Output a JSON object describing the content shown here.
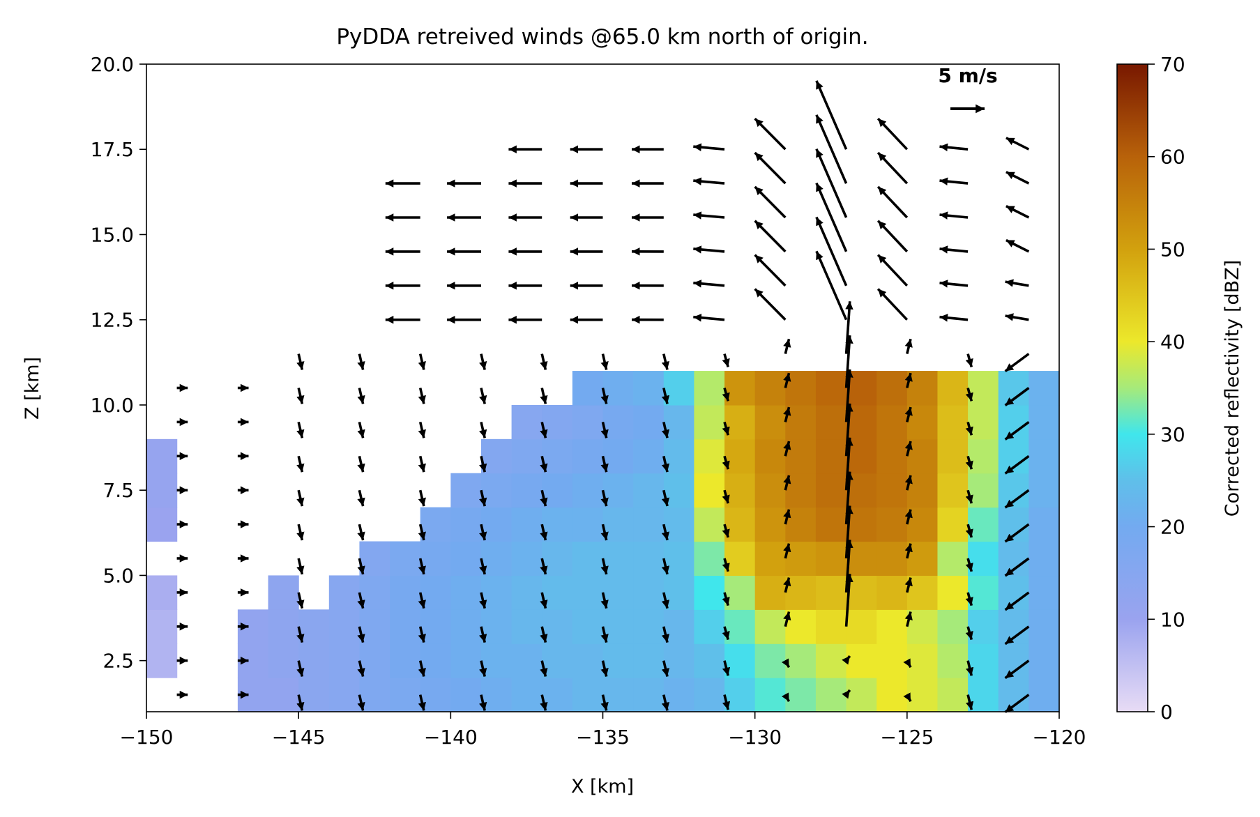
{
  "chart_data": {
    "type": "heatmap",
    "title": "PyDDA retreived winds @65.0 km north of origin.",
    "xlabel": "X [km]",
    "ylabel": "Z [km]",
    "xlim": [
      -150,
      -120
    ],
    "ylim": [
      1.0,
      20.0
    ],
    "x_ticks": [
      -150,
      -145,
      -140,
      -135,
      -130,
      -125,
      -120
    ],
    "x_tick_labels": [
      "−150",
      "−145",
      "−140",
      "−135",
      "−130",
      "−125",
      "−120"
    ],
    "y_ticks": [
      2.5,
      5.0,
      7.5,
      10.0,
      12.5,
      15.0,
      17.5,
      20.0
    ],
    "y_tick_labels": [
      "2.5",
      "5.0",
      "7.5",
      "10.0",
      "12.5",
      "15.0",
      "17.5",
      "20.0"
    ],
    "colorbar": {
      "label": "Corrected reflectivity [dBZ]",
      "range": [
        0,
        70
      ],
      "ticks": [
        0,
        10,
        20,
        30,
        40,
        50,
        60,
        70
      ],
      "tick_labels": [
        "0",
        "10",
        "20",
        "30",
        "40",
        "50",
        "60",
        "70"
      ],
      "stops": [
        {
          "value": 0,
          "color": "#e8dcf5"
        },
        {
          "value": 10,
          "color": "#9aa3ef"
        },
        {
          "value": 20,
          "color": "#73aaf0"
        },
        {
          "value": 25,
          "color": "#5fbfea"
        },
        {
          "value": 30,
          "color": "#40e6ec"
        },
        {
          "value": 35,
          "color": "#a6ea7a"
        },
        {
          "value": 40,
          "color": "#ece82b"
        },
        {
          "value": 50,
          "color": "#d2a10e"
        },
        {
          "value": 60,
          "color": "#b8620a"
        },
        {
          "value": 70,
          "color": "#781800"
        }
      ]
    },
    "reflectivity_grid": {
      "x_edges_km": [
        -150,
        -149,
        -148,
        -147,
        -146,
        -145,
        -144,
        -143,
        -142,
        -141,
        -140,
        -139,
        -138,
        -137,
        -136,
        -135,
        -134,
        -133,
        -132,
        -131,
        -130,
        -129,
        -128,
        -127,
        -126,
        -125,
        -124,
        -123,
        -122,
        -121,
        -120
      ],
      "z_edges_km": [
        1.0,
        2.0,
        3.0,
        4.0,
        5.0,
        6.0,
        7.0,
        8.0,
        9.0,
        10.0,
        11.0
      ],
      "values_dBZ": [
        [
          null,
          null,
          null,
          12,
          12,
          14,
          15,
          17,
          18,
          19,
          20,
          21,
          22,
          22,
          23,
          23,
          23,
          22,
          23,
          27,
          31,
          33,
          35,
          37,
          40,
          39,
          37,
          28,
          24,
          21,
          17
        ],
        [
          7,
          null,
          null,
          12,
          13,
          14,
          15,
          17,
          19,
          20,
          21,
          22,
          22,
          23,
          23,
          24,
          24,
          23,
          25,
          29,
          33,
          35,
          38,
          40,
          40,
          39,
          36,
          28,
          24,
          21,
          17
        ],
        [
          7,
          null,
          null,
          12,
          13,
          14,
          15,
          17,
          19,
          20,
          21,
          22,
          23,
          23,
          24,
          24,
          24,
          23,
          27,
          32,
          37,
          40,
          42,
          42,
          40,
          38,
          35,
          27,
          24,
          21,
          17
        ],
        [
          8,
          null,
          null,
          null,
          13,
          null,
          15,
          17,
          19,
          20,
          21,
          22,
          23,
          24,
          24,
          24,
          24,
          25,
          30,
          35,
          48,
          47,
          46,
          46,
          47,
          45,
          40,
          31,
          25,
          21,
          17
        ],
        [
          null,
          null,
          null,
          null,
          null,
          null,
          null,
          16,
          18,
          19,
          20,
          21,
          22,
          23,
          24,
          24,
          24,
          25,
          33,
          44,
          50,
          51,
          52,
          53,
          53,
          51,
          36,
          29,
          24,
          21,
          18
        ],
        [
          10,
          null,
          null,
          null,
          null,
          null,
          null,
          null,
          null,
          18,
          19,
          20,
          21,
          22,
          22,
          23,
          23,
          24,
          37,
          47,
          52,
          55,
          57,
          57,
          56,
          54,
          43,
          32,
          25,
          21,
          19
        ],
        [
          11,
          null,
          null,
          null,
          null,
          null,
          null,
          null,
          null,
          null,
          17,
          18,
          19,
          20,
          21,
          22,
          23,
          25,
          40,
          48,
          53,
          56,
          58,
          58,
          57,
          55,
          45,
          35,
          26,
          22,
          19
        ],
        [
          11,
          null,
          null,
          null,
          null,
          null,
          null,
          null,
          null,
          null,
          null,
          16,
          17,
          18,
          19,
          20,
          21,
          24,
          39,
          49,
          54,
          56,
          58,
          59,
          57,
          55,
          46,
          36,
          27,
          22,
          20
        ],
        [
          null,
          null,
          null,
          null,
          null,
          null,
          null,
          null,
          null,
          null,
          null,
          null,
          15,
          16,
          17,
          19,
          20,
          23,
          37,
          48,
          53,
          56,
          58,
          59,
          57,
          54,
          46,
          37,
          27,
          22,
          20
        ],
        [
          null,
          null,
          null,
          null,
          null,
          null,
          null,
          null,
          null,
          null,
          null,
          null,
          null,
          null,
          20,
          21,
          22,
          27,
          36,
          52,
          55,
          57,
          59,
          60,
          58,
          55,
          47,
          37,
          26,
          22,
          21
        ]
      ]
    },
    "wind_scale": {
      "label": "5 m/s",
      "magnitude_ms": 5
    }
  }
}
